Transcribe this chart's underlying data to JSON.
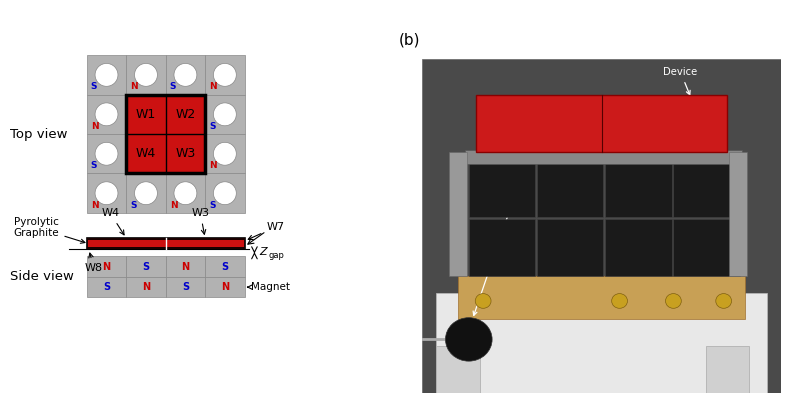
{
  "fig_width": 7.89,
  "fig_height": 4.18,
  "dpi": 100,
  "bg_color": "#ffffff",
  "gray_color": "#b2b2b2",
  "red_color": "#cc1111",
  "dark_red_color": "#1a0000",
  "black_color": "#000000",
  "white_color": "#ffffff",
  "blue_label_color": "#0000cc",
  "red_label_color": "#cc0000",
  "top_ns": [
    [
      [
        "S",
        "blue"
      ],
      [
        "N",
        "red"
      ],
      [
        "S",
        "blue"
      ],
      [
        "N",
        "red"
      ]
    ],
    [
      [
        "N",
        "red"
      ],
      [
        "",
        ""
      ],
      [
        "",
        ""
      ],
      [
        "S",
        "blue"
      ]
    ],
    [
      [
        "S",
        "blue"
      ],
      [
        "",
        ""
      ],
      [
        "",
        ""
      ],
      [
        "N",
        "red"
      ]
    ],
    [
      [
        "N",
        "red"
      ],
      [
        "S",
        "blue"
      ],
      [
        "N",
        "red"
      ],
      [
        "S",
        "blue"
      ]
    ]
  ],
  "side_ns_top": [
    [
      "N",
      "red"
    ],
    [
      "S",
      "blue"
    ],
    [
      "N",
      "red"
    ],
    [
      "S",
      "blue"
    ]
  ],
  "side_ns_bot": [
    [
      "S",
      "blue"
    ],
    [
      "N",
      "red"
    ],
    [
      "S",
      "blue"
    ],
    [
      "N",
      "red"
    ]
  ]
}
